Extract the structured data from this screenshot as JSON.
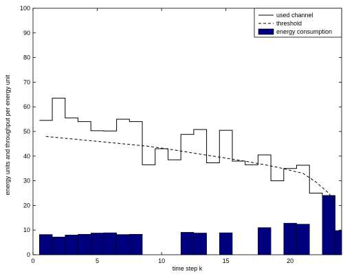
{
  "chart_data": {
    "type": "bar",
    "xlabel": "time step k",
    "ylabel": "energy units and throughput per energy unit",
    "xlim": [
      0,
      24
    ],
    "ylim": [
      0,
      100
    ],
    "xticks": [
      0,
      5,
      10,
      15,
      20
    ],
    "yticks": [
      0,
      10,
      20,
      30,
      40,
      50,
      60,
      70,
      80,
      90,
      100
    ],
    "grid": false,
    "legend_position": "top-right",
    "bar_color": "#00007f",
    "legend": {
      "used_channel": "used channel",
      "threshold": "threshold",
      "energy_consumption": "energy consumption"
    },
    "energy_consumption": {
      "k": [
        1,
        2,
        3,
        4,
        5,
        6,
        7,
        8,
        9,
        10,
        11,
        12,
        13,
        14,
        15,
        16,
        17,
        18,
        19,
        20,
        21,
        22,
        23,
        24
      ],
      "values": [
        8.2,
        7.2,
        8.0,
        8.3,
        8.8,
        8.9,
        8.2,
        8.3,
        0,
        0,
        0,
        9.1,
        8.8,
        0,
        8.9,
        0,
        0,
        11.0,
        0,
        12.8,
        12.4,
        0,
        24.0,
        9.8
      ]
    },
    "used_channel": {
      "steps": [
        [
          0.5,
          54.5
        ],
        [
          1.5,
          63.5
        ],
        [
          2.5,
          55.5
        ],
        [
          3.5,
          54.0
        ],
        [
          4.5,
          50.3
        ],
        [
          5.5,
          50.2
        ],
        [
          6.5,
          55.0
        ],
        [
          7.5,
          54.0
        ],
        [
          8.5,
          36.5
        ],
        [
          9.5,
          43.0
        ],
        [
          10.5,
          38.5
        ],
        [
          11.5,
          48.8
        ],
        [
          12.5,
          50.8
        ],
        [
          13.5,
          37.3
        ],
        [
          14.5,
          50.5
        ],
        [
          15.5,
          38.0
        ],
        [
          16.5,
          36.5
        ],
        [
          17.5,
          40.5
        ],
        [
          18.5,
          30.0
        ],
        [
          19.5,
          35.0
        ],
        [
          20.5,
          36.3
        ],
        [
          21.5,
          25.0
        ],
        [
          22.5,
          24.0
        ]
      ],
      "end_x": 23.5
    },
    "threshold": {
      "x": [
        1,
        3,
        5,
        7,
        9,
        11,
        13,
        15,
        17,
        19,
        21,
        22,
        23,
        23.5
      ],
      "y": [
        48.0,
        47.0,
        46.0,
        45.0,
        44.0,
        42.5,
        40.8,
        39.2,
        37.5,
        35.5,
        33.0,
        29.5,
        25.0,
        21.0
      ]
    }
  }
}
